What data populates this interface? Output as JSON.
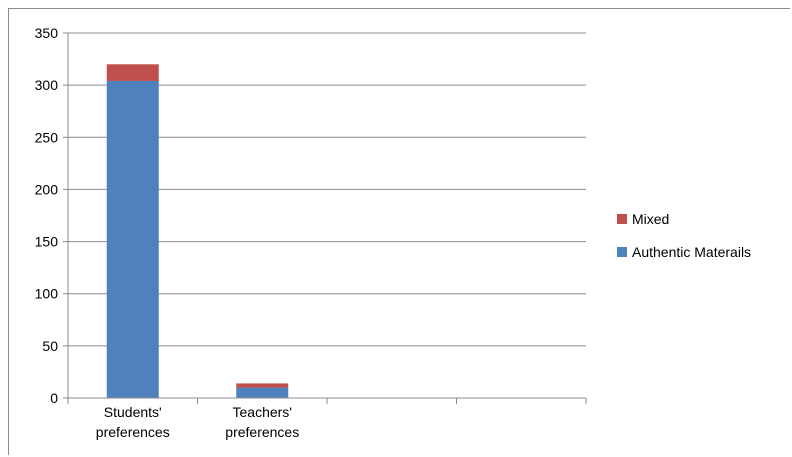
{
  "chart_data": {
    "type": "bar",
    "stacked": true,
    "title": "",
    "xlabel": "",
    "ylabel": "",
    "ylim": [
      0,
      350
    ],
    "yticks": [
      0,
      50,
      100,
      150,
      200,
      250,
      300,
      350
    ],
    "grid": true,
    "legend_position": "right",
    "categories": [
      "Students' preferences",
      "Teachers' preferences",
      "",
      ""
    ],
    "category_label_lines": [
      [
        "Students'",
        "preferences"
      ],
      [
        "Teachers'",
        "preferences"
      ],
      [],
      []
    ],
    "series": [
      {
        "name": "Authentic Materails",
        "color": "#4f81bd",
        "values": [
          304,
          10,
          null,
          null
        ]
      },
      {
        "name": "Mixed",
        "color": "#c0504d",
        "values": [
          16,
          4,
          null,
          null
        ]
      }
    ],
    "legend_order": [
      "Mixed",
      "Authentic Materails"
    ]
  }
}
